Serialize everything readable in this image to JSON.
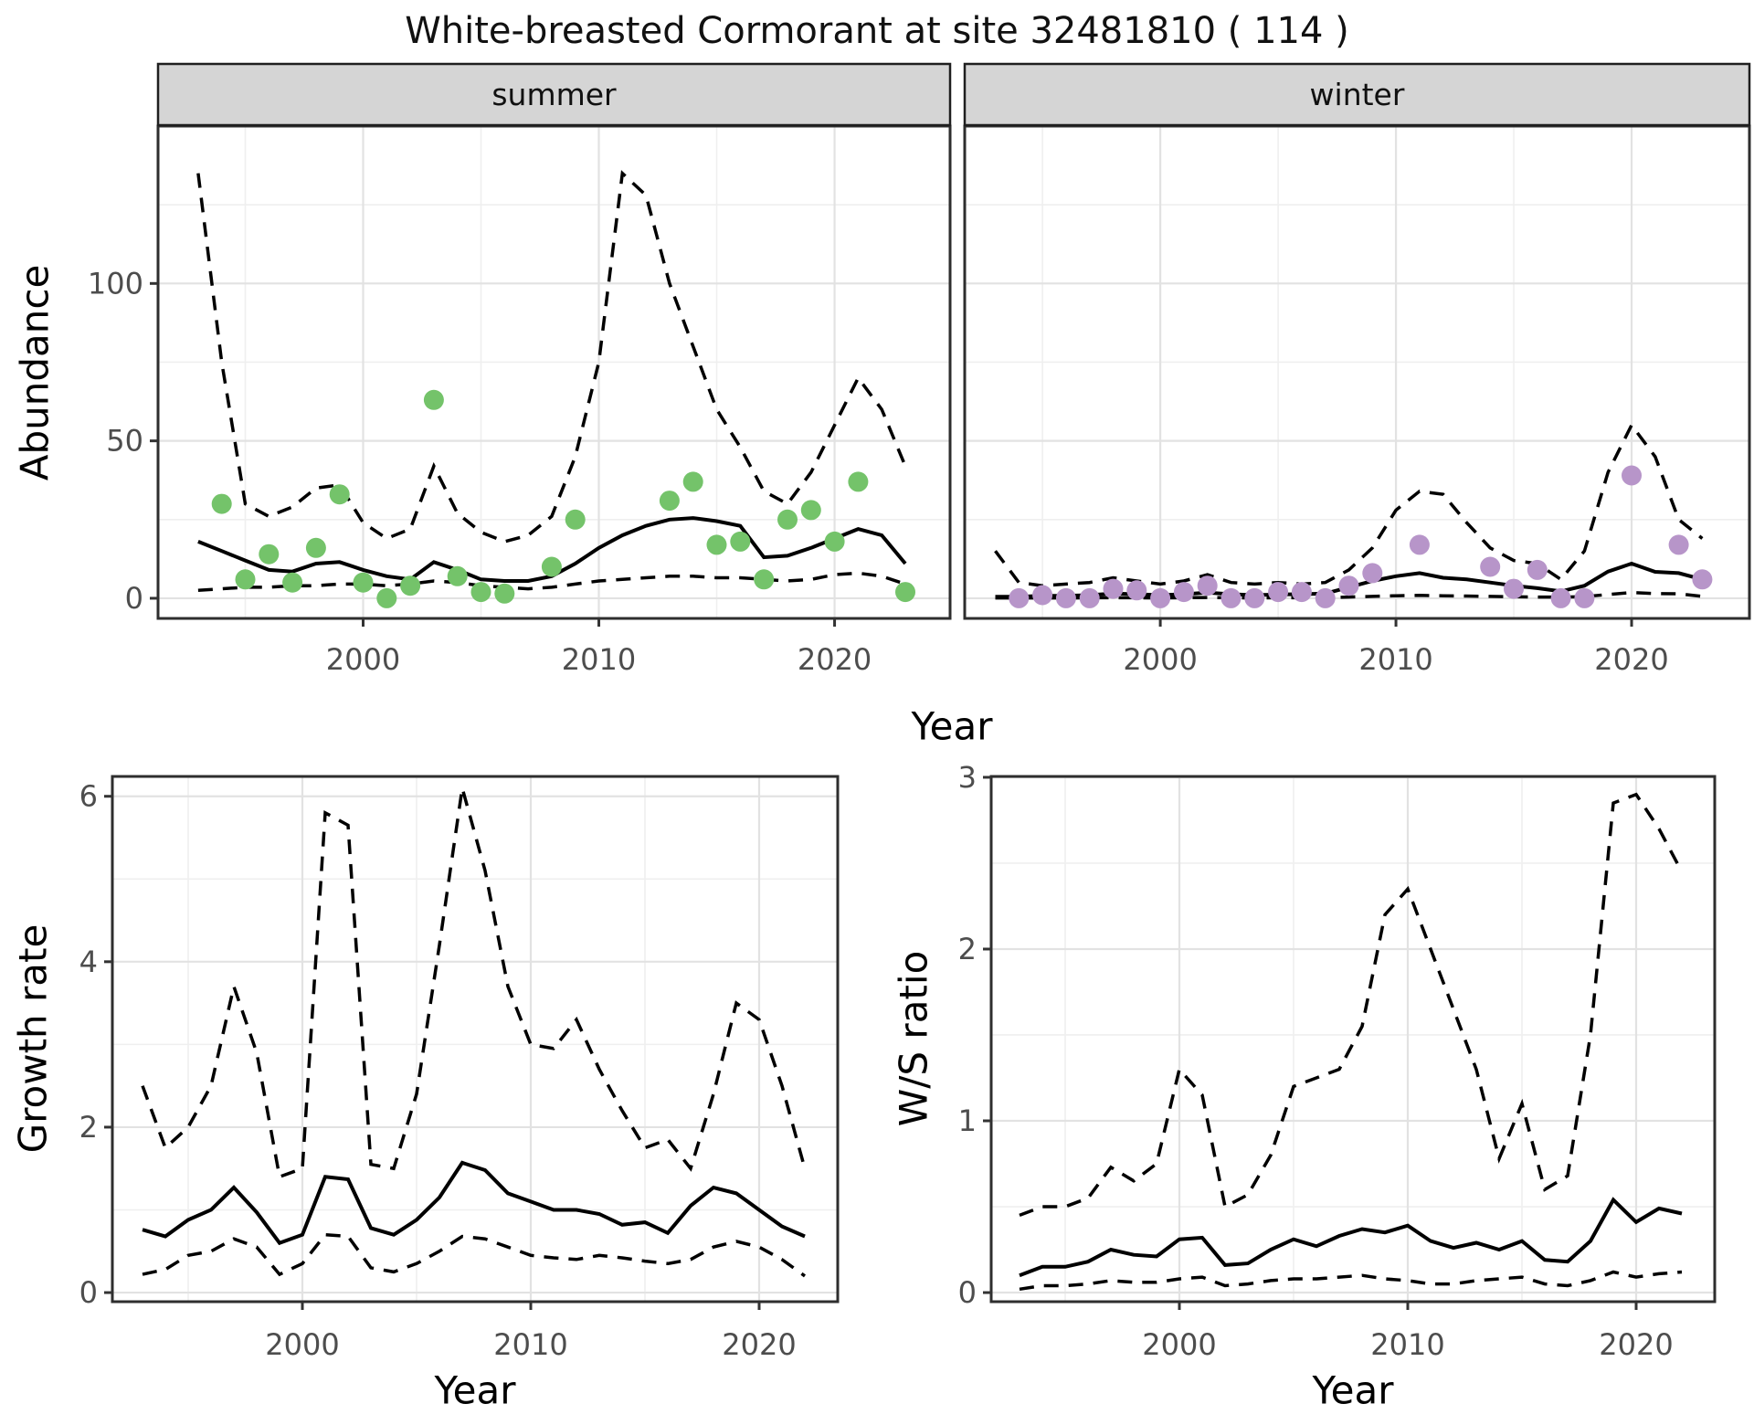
{
  "title": "White-breasted Cormorant at site 32481810 ( 114 )",
  "facets": {
    "summer": "summer",
    "winter": "winter"
  },
  "axis": {
    "x_label": "Year",
    "abundance_label": "Abundance",
    "growth_label": "Growth rate",
    "ws_label": "W/S ratio"
  },
  "colors": {
    "summer_point": "#74c36a",
    "winter_point": "#b795c9",
    "line": "#000000",
    "grid_major": "#e2e2e2",
    "grid_minor": "#efefef",
    "panel_border": "#2e2e2e",
    "tick_mark": "#333333",
    "tick_label": "#4d4d4d",
    "strip_bg": "#d5d5d5",
    "strip_border": "#1f1f1f"
  },
  "chart_data": [
    {
      "id": "abundance-summer",
      "type": "line",
      "facet_label": "summer",
      "ylabel": "Abundance",
      "xlabel": "Year",
      "x_domain": [
        1991.3,
        2024.9
      ],
      "y_domain": [
        -6.4,
        150
      ],
      "x_ticks": {
        "labels": [
          "2000",
          "2010",
          "2020"
        ],
        "values": [
          2000,
          2010,
          2020
        ],
        "minor": [
          1995,
          2005,
          2015
        ]
      },
      "y_ticks": {
        "labels": [
          "0",
          "50",
          "100"
        ],
        "values": [
          0,
          50,
          100
        ],
        "minor": [
          25,
          75,
          125
        ]
      },
      "years": [
        1993,
        1994,
        1995,
        1996,
        1997,
        1998,
        1999,
        2000,
        2001,
        2002,
        2003,
        2004,
        2005,
        2006,
        2007,
        2008,
        2009,
        2010,
        2011,
        2012,
        2013,
        2014,
        2015,
        2016,
        2017,
        2018,
        2019,
        2020,
        2021,
        2022,
        2023
      ],
      "series": [
        {
          "name": "upper_95ci",
          "style": "dashed",
          "values": [
            135,
            75,
            30,
            26,
            29,
            35,
            36,
            24,
            19,
            22,
            42,
            27,
            21,
            18,
            20,
            26,
            45,
            75,
            135,
            128,
            100,
            80,
            60,
            48,
            34,
            30,
            40,
            55,
            70,
            60,
            42
          ]
        },
        {
          "name": "median",
          "style": "solid",
          "values": [
            18,
            15,
            12,
            9,
            8.5,
            11,
            11.5,
            9,
            7,
            6,
            11.5,
            9,
            6,
            5.5,
            5.5,
            7,
            11,
            16,
            20,
            23,
            25,
            25.5,
            24.5,
            23,
            13,
            13.5,
            16,
            19,
            22,
            20,
            11
          ]
        },
        {
          "name": "lower_95ci",
          "style": "dashed",
          "values": [
            2.5,
            3,
            3.5,
            3.5,
            4,
            4,
            4.5,
            4.5,
            4,
            4.5,
            5.5,
            5,
            4,
            3.5,
            3,
            3.5,
            4.5,
            5.5,
            6,
            6.5,
            7,
            7,
            6.5,
            6.5,
            6,
            5.5,
            6,
            7.5,
            8,
            7,
            4.5
          ]
        }
      ],
      "points": {
        "name": "observed-abundance-summer",
        "color_key": "summer_point",
        "years": [
          1994,
          1995,
          1996,
          1997,
          1998,
          1999,
          2000,
          2001,
          2002,
          2003,
          2004,
          2005,
          2006,
          2008,
          2009,
          2013,
          2014,
          2015,
          2016,
          2017,
          2018,
          2019,
          2020,
          2021,
          2023
        ],
        "values": [
          30,
          6,
          14,
          5,
          16,
          33,
          5,
          0,
          4,
          63,
          7,
          2,
          1.5,
          10,
          25,
          31,
          37,
          17,
          18,
          6,
          25,
          28,
          18,
          37,
          2
        ]
      }
    },
    {
      "id": "abundance-winter",
      "type": "line",
      "facet_label": "winter",
      "ylabel": "Abundance",
      "xlabel": "Year",
      "x_domain": [
        1991.7,
        2025.0
      ],
      "y_domain": [
        -6.4,
        150
      ],
      "x_ticks": {
        "labels": [
          "2000",
          "2010",
          "2020"
        ],
        "values": [
          2000,
          2010,
          2020
        ],
        "minor": [
          1995,
          2005,
          2015
        ]
      },
      "y_ticks": {
        "labels": [],
        "values": [
          0,
          50,
          100
        ],
        "minor": [
          25,
          75,
          125
        ]
      },
      "years": [
        1993,
        1994,
        1995,
        1996,
        1997,
        1998,
        1999,
        2000,
        2001,
        2002,
        2003,
        2004,
        2005,
        2006,
        2007,
        2008,
        2009,
        2010,
        2011,
        2012,
        2013,
        2014,
        2015,
        2016,
        2017,
        2018,
        2019,
        2020,
        2021,
        2022,
        2023
      ],
      "series": [
        {
          "name": "upper_95ci",
          "style": "dashed",
          "values": [
            15,
            5,
            4,
            4.5,
            5,
            6.5,
            5.5,
            4.5,
            5.5,
            7.5,
            5,
            4.5,
            5,
            4.5,
            5,
            9,
            16,
            28,
            34,
            33,
            24,
            16,
            12,
            11,
            6,
            15,
            40,
            55,
            45,
            25,
            19
          ]
        },
        {
          "name": "median",
          "style": "solid",
          "values": [
            0.5,
            0.5,
            0.8,
            0.8,
            1,
            1.5,
            1.3,
            1,
            1.3,
            1.8,
            1.3,
            1,
            1.2,
            1.3,
            1.5,
            3.5,
            5.5,
            7,
            8,
            6.5,
            6,
            5,
            4,
            3.2,
            2.2,
            4,
            8.5,
            11,
            8.4,
            8,
            6
          ]
        },
        {
          "name": "lower_95ci",
          "style": "dashed",
          "values": [
            0.1,
            0.1,
            0.1,
            0.1,
            0.15,
            0.2,
            0.15,
            0.1,
            0.15,
            0.25,
            0.15,
            0.1,
            0.15,
            0.15,
            0.2,
            0.4,
            0.6,
            0.8,
            0.9,
            0.8,
            0.7,
            0.6,
            0.5,
            0.4,
            0.4,
            0.5,
            1.2,
            1.8,
            1.5,
            1.4,
            0.6
          ]
        }
      ],
      "points": {
        "name": "observed-abundance-winter",
        "color_key": "winter_point",
        "years": [
          1994,
          1995,
          1996,
          1997,
          1998,
          1999,
          2000,
          2001,
          2002,
          2003,
          2004,
          2005,
          2006,
          2007,
          2008,
          2009,
          2011,
          2014,
          2015,
          2016,
          2017,
          2018,
          2020,
          2022,
          2023
        ],
        "values": [
          0,
          1,
          0,
          0,
          3,
          2.5,
          0,
          2,
          4,
          0,
          0,
          2,
          2,
          0,
          4,
          8,
          17,
          10,
          3,
          9,
          0,
          0,
          39,
          17,
          6
        ]
      }
    },
    {
      "id": "growth-rate",
      "type": "line",
      "facet_label": null,
      "ylabel": "Growth rate",
      "xlabel": "Year",
      "x_domain": [
        1991.68,
        2023.44
      ],
      "y_domain": [
        -0.11,
        6.24
      ],
      "x_ticks": {
        "labels": [
          "2000",
          "2010",
          "2020"
        ],
        "values": [
          2000,
          2010,
          2020
        ],
        "minor": [
          1995,
          2005,
          2015
        ]
      },
      "y_ticks": {
        "labels": [
          "0",
          "2",
          "4",
          "6"
        ],
        "values": [
          0,
          2,
          4,
          6
        ],
        "minor": [
          1,
          3,
          5
        ]
      },
      "years": [
        1993,
        1994,
        1995,
        1996,
        1997,
        1998,
        1999,
        2000,
        2001,
        2002,
        2003,
        2004,
        2005,
        2006,
        2007,
        2008,
        2009,
        2010,
        2011,
        2012,
        2013,
        2014,
        2015,
        2016,
        2017,
        2018,
        2019,
        2020,
        2021,
        2022
      ],
      "series": [
        {
          "name": "upper_95ci",
          "style": "dashed",
          "values": [
            2.5,
            1.75,
            2.0,
            2.5,
            3.7,
            2.9,
            1.4,
            1.5,
            5.8,
            5.65,
            1.55,
            1.5,
            2.4,
            4.2,
            6.1,
            5.1,
            3.7,
            3.0,
            2.95,
            3.3,
            2.7,
            2.2,
            1.75,
            1.85,
            1.5,
            2.4,
            3.5,
            3.3,
            2.5,
            1.5
          ]
        },
        {
          "name": "median",
          "style": "solid",
          "values": [
            0.76,
            0.68,
            0.88,
            1.0,
            1.27,
            0.97,
            0.6,
            0.7,
            1.4,
            1.37,
            0.78,
            0.7,
            0.88,
            1.15,
            1.57,
            1.48,
            1.2,
            1.1,
            1.0,
            1.0,
            0.95,
            0.82,
            0.85,
            0.72,
            1.05,
            1.27,
            1.2,
            1.0,
            0.8,
            0.68
          ]
        },
        {
          "name": "lower_95ci",
          "style": "dashed",
          "values": [
            0.22,
            0.28,
            0.45,
            0.5,
            0.65,
            0.55,
            0.22,
            0.35,
            0.7,
            0.68,
            0.3,
            0.25,
            0.35,
            0.5,
            0.68,
            0.65,
            0.55,
            0.45,
            0.42,
            0.4,
            0.45,
            0.42,
            0.38,
            0.35,
            0.4,
            0.55,
            0.62,
            0.55,
            0.4,
            0.2
          ]
        }
      ],
      "points": null
    },
    {
      "id": "ws-ratio",
      "type": "line",
      "facet_label": null,
      "ylabel": "W/S ratio",
      "xlabel": "Year",
      "x_domain": [
        1991.76,
        2023.44
      ],
      "y_domain": [
        -0.053,
        3.005
      ],
      "x_ticks": {
        "labels": [
          "2000",
          "2010",
          "2020"
        ],
        "values": [
          2000,
          2010,
          2020
        ],
        "minor": [
          1995,
          2005,
          2015
        ]
      },
      "y_ticks": {
        "labels": [
          "0",
          "1",
          "2",
          "3"
        ],
        "values": [
          0,
          1,
          2,
          3
        ],
        "minor": [
          0.5,
          1.5,
          2.5
        ]
      },
      "years": [
        1993,
        1994,
        1995,
        1996,
        1997,
        1998,
        1999,
        2000,
        2001,
        2002,
        2003,
        2004,
        2005,
        2006,
        2007,
        2008,
        2009,
        2010,
        2011,
        2012,
        2013,
        2014,
        2015,
        2016,
        2017,
        2018,
        2019,
        2020,
        2021,
        2022
      ],
      "series": [
        {
          "name": "upper_95ci",
          "style": "dashed",
          "values": [
            0.45,
            0.5,
            0.5,
            0.55,
            0.73,
            0.65,
            0.75,
            1.3,
            1.15,
            0.5,
            0.57,
            0.8,
            1.2,
            1.25,
            1.3,
            1.55,
            2.2,
            2.35,
            2.0,
            1.65,
            1.3,
            0.78,
            1.1,
            0.6,
            0.68,
            1.5,
            2.85,
            2.9,
            2.7,
            2.45
          ]
        },
        {
          "name": "median",
          "style": "solid",
          "values": [
            0.1,
            0.15,
            0.15,
            0.18,
            0.25,
            0.22,
            0.21,
            0.31,
            0.32,
            0.16,
            0.17,
            0.25,
            0.31,
            0.27,
            0.33,
            0.37,
            0.35,
            0.39,
            0.3,
            0.26,
            0.29,
            0.25,
            0.3,
            0.19,
            0.18,
            0.3,
            0.54,
            0.41,
            0.49,
            0.46
          ]
        },
        {
          "name": "lower_95ci",
          "style": "dashed",
          "values": [
            0.02,
            0.04,
            0.04,
            0.05,
            0.07,
            0.06,
            0.06,
            0.08,
            0.09,
            0.04,
            0.05,
            0.07,
            0.08,
            0.08,
            0.09,
            0.1,
            0.08,
            0.07,
            0.05,
            0.05,
            0.07,
            0.08,
            0.09,
            0.05,
            0.04,
            0.07,
            0.12,
            0.09,
            0.11,
            0.12
          ]
        }
      ],
      "points": null
    }
  ]
}
